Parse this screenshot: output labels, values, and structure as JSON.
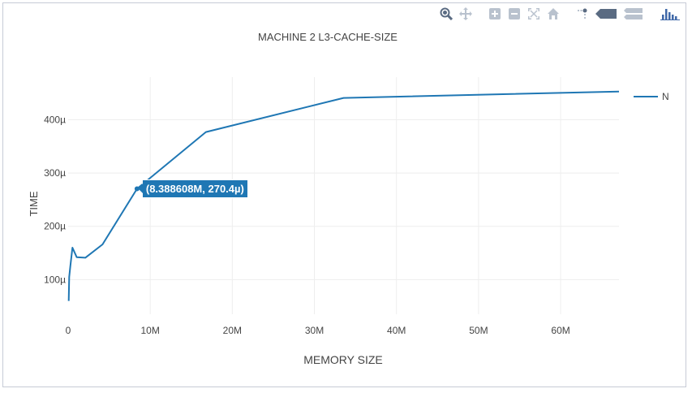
{
  "chart_data": {
    "type": "line",
    "title": "MACHINE 2 L3-CACHE-SIZE",
    "xlabel": "MEMORY SIZE",
    "ylabel": "TIME",
    "xlim": [
      0,
      67108864
    ],
    "ylim": [
      35,
      480
    ],
    "x_ticks": [
      {
        "value": 0,
        "label": "0"
      },
      {
        "value": 10000000,
        "label": "10M"
      },
      {
        "value": 20000000,
        "label": "20M"
      },
      {
        "value": 30000000,
        "label": "30M"
      },
      {
        "value": 40000000,
        "label": "40M"
      },
      {
        "value": 50000000,
        "label": "50M"
      },
      {
        "value": 60000000,
        "label": "60M"
      }
    ],
    "y_ticks": [
      {
        "value": 100,
        "label": "100µ"
      },
      {
        "value": 200,
        "label": "200µ"
      },
      {
        "value": 300,
        "label": "300µ"
      },
      {
        "value": 400,
        "label": "400µ"
      }
    ],
    "grid": true,
    "legend_position": "top-right",
    "series": [
      {
        "name": "N",
        "color": "#1f77b4",
        "x": [
          65536,
          131072,
          262144,
          524288,
          1048576,
          2097152,
          4194304,
          8388608,
          16777216,
          33554432,
          67108864
        ],
        "y": [
          60,
          105,
          125,
          160,
          142,
          141,
          166,
          270.4,
          377,
          441,
          453
        ]
      }
    ],
    "hover": {
      "label": "(8.388608M, 270.4µ)",
      "x": 8388608,
      "y": 270.4
    }
  },
  "modebar": {
    "icons": [
      "zoom-icon",
      "pan-icon",
      "zoom-in-icon",
      "zoom-out-icon",
      "autoscale-icon",
      "reset-axes-icon",
      "spike-lines-icon",
      "hover-closest-icon",
      "hover-compare-icon",
      "plotly-logo-icon"
    ]
  }
}
